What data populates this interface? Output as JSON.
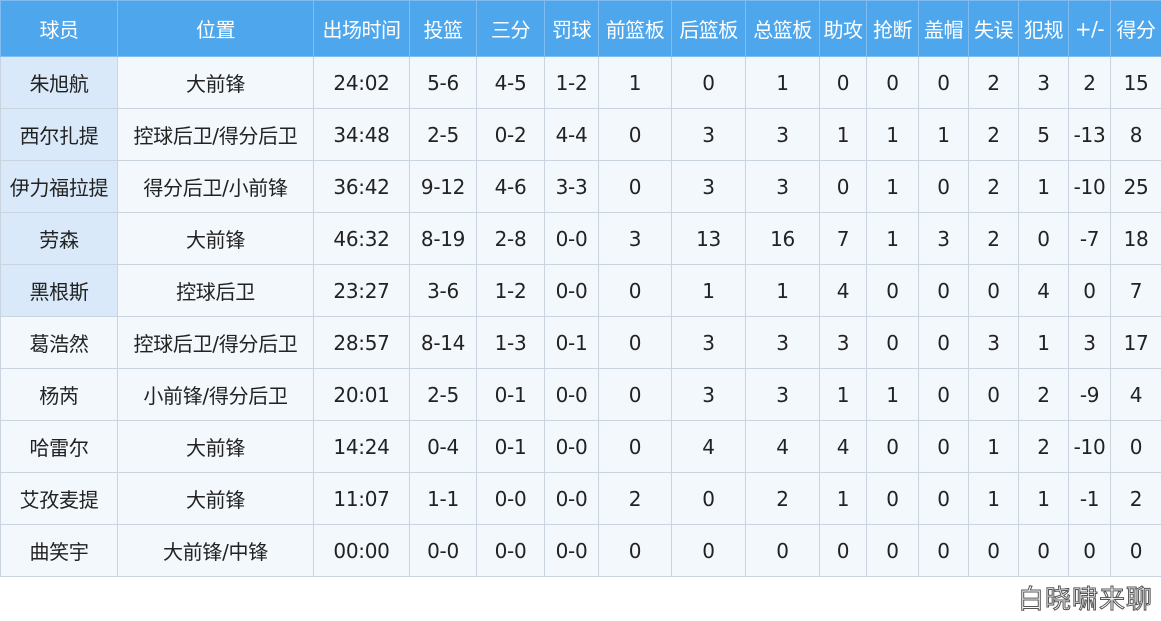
{
  "headers": [
    "球员",
    "位置",
    "出场时间",
    "投篮",
    "三分",
    "罚球",
    "前篮板",
    "后篮板",
    "总篮板",
    "助攻",
    "抢断",
    "盖帽",
    "失误",
    "犯规",
    "+/-",
    "得分"
  ],
  "rows": [
    {
      "starter": true,
      "cells": [
        "朱旭航",
        "大前锋",
        "24:02",
        "5-6",
        "4-5",
        "1-2",
        "1",
        "0",
        "1",
        "0",
        "0",
        "0",
        "2",
        "3",
        "2",
        "15"
      ]
    },
    {
      "starter": true,
      "cells": [
        "西尔扎提",
        "控球后卫/得分后卫",
        "34:48",
        "2-5",
        "0-2",
        "4-4",
        "0",
        "3",
        "3",
        "1",
        "1",
        "1",
        "2",
        "5",
        "-13",
        "8"
      ]
    },
    {
      "starter": true,
      "cells": [
        "伊力福拉提",
        "得分后卫/小前锋",
        "36:42",
        "9-12",
        "4-6",
        "3-3",
        "0",
        "3",
        "3",
        "0",
        "1",
        "0",
        "2",
        "1",
        "-10",
        "25"
      ]
    },
    {
      "starter": true,
      "cells": [
        "劳森",
        "大前锋",
        "46:32",
        "8-19",
        "2-8",
        "0-0",
        "3",
        "13",
        "16",
        "7",
        "1",
        "3",
        "2",
        "0",
        "-7",
        "18"
      ]
    },
    {
      "starter": true,
      "cells": [
        "黑根斯",
        "控球后卫",
        "23:27",
        "3-6",
        "1-2",
        "0-0",
        "0",
        "1",
        "1",
        "4",
        "0",
        "0",
        "0",
        "4",
        "0",
        "7"
      ]
    },
    {
      "starter": false,
      "cells": [
        "葛浩然",
        "控球后卫/得分后卫",
        "28:57",
        "8-14",
        "1-3",
        "0-1",
        "0",
        "3",
        "3",
        "3",
        "0",
        "0",
        "3",
        "1",
        "3",
        "17"
      ]
    },
    {
      "starter": false,
      "cells": [
        "杨芮",
        "小前锋/得分后卫",
        "20:01",
        "2-5",
        "0-1",
        "0-0",
        "0",
        "3",
        "3",
        "1",
        "1",
        "0",
        "0",
        "2",
        "-9",
        "4"
      ]
    },
    {
      "starter": false,
      "cells": [
        "哈雷尔",
        "大前锋",
        "14:24",
        "0-4",
        "0-1",
        "0-0",
        "0",
        "4",
        "4",
        "4",
        "0",
        "0",
        "1",
        "2",
        "-10",
        "0"
      ]
    },
    {
      "starter": false,
      "cells": [
        "艾孜麦提",
        "大前锋",
        "11:07",
        "1-1",
        "0-0",
        "0-0",
        "2",
        "0",
        "2",
        "1",
        "0",
        "0",
        "1",
        "1",
        "-1",
        "2"
      ]
    },
    {
      "starter": false,
      "cells": [
        "曲笑宇",
        "大前锋/中锋",
        "00:00",
        "0-0",
        "0-0",
        "0-0",
        "0",
        "0",
        "0",
        "0",
        "0",
        "0",
        "0",
        "0",
        "0",
        "0"
      ]
    }
  ],
  "watermark": "白晓啸来聊",
  "colors": {
    "header_bg": "#4ea7ec",
    "cell_bg": "#f3f8fd",
    "starter_bg": "#d9e9f9"
  }
}
